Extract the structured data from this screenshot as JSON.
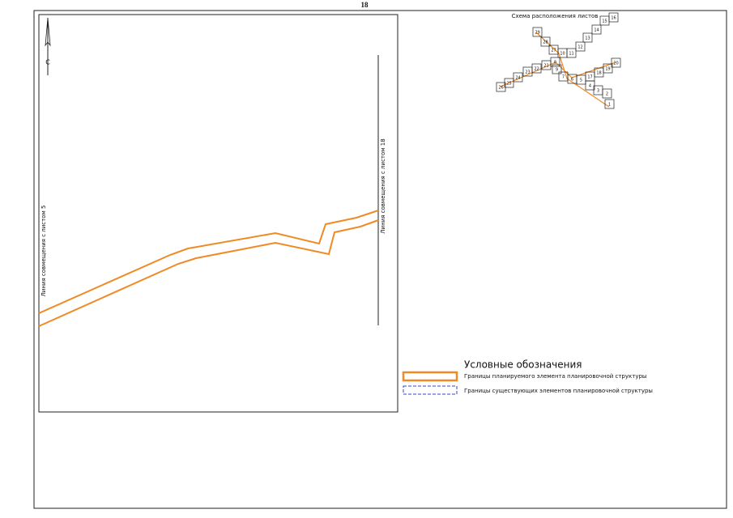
{
  "page_number": "18",
  "north_label": "С",
  "match_lines": {
    "left": "Линия совмещения с листом 5",
    "right": "Линия совмещения с листом 18"
  },
  "sheet_scheme": {
    "title": "Схема расположения листов",
    "sheets": [
      "1",
      "2",
      "3",
      "4",
      "5",
      "6",
      "7",
      "8",
      "9",
      "10",
      "11",
      "12",
      "13",
      "14",
      "15",
      "16",
      "17",
      "18",
      "19",
      "20",
      "21",
      "22",
      "23",
      "24",
      "25",
      "26",
      "27",
      "28",
      "29"
    ]
  },
  "legend": {
    "title": "Условные обозначения",
    "items": [
      "Границы планируемого элемента планировочной структуры",
      "Границы существующих элементов планировочной структуры"
    ]
  }
}
